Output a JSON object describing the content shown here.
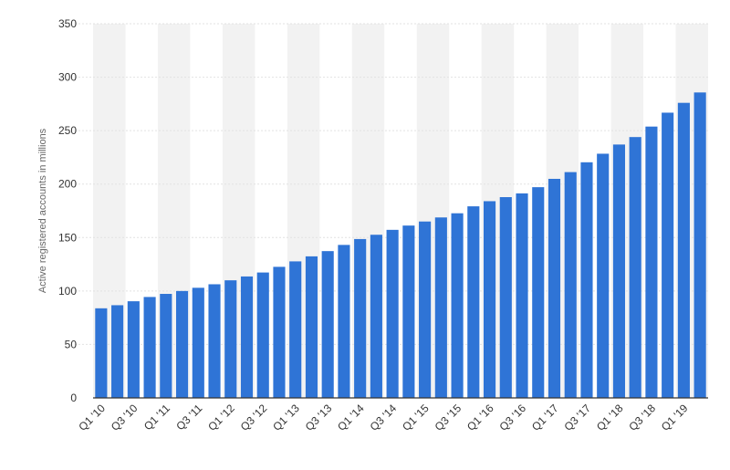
{
  "chart_data": {
    "type": "bar",
    "title": "",
    "xlabel": "",
    "ylabel": "Active registered accounts in millions",
    "ylim": [
      0,
      350
    ],
    "yticks": [
      0,
      50,
      100,
      150,
      200,
      250,
      300,
      350
    ],
    "grid": true,
    "legend": "none",
    "bar_color": "#2f74d6",
    "alt_band_color": "#f2f2f2",
    "grid_color": "#e2e2e2",
    "axis_text_color": "#333333",
    "categories": [
      "Q1 '10",
      "Q2 '10",
      "Q3 '10",
      "Q4 '10",
      "Q1 '11",
      "Q2 '11",
      "Q3 '11",
      "Q4 '11",
      "Q1 '12",
      "Q2 '12",
      "Q3 '12",
      "Q4 '12",
      "Q1 '13",
      "Q2 '13",
      "Q3 '13",
      "Q4 '13",
      "Q1 '14",
      "Q2 '14",
      "Q3 '14",
      "Q4 '14",
      "Q1 '15",
      "Q2 '15",
      "Q3 '15",
      "Q4 '15",
      "Q1 '16",
      "Q2 '16",
      "Q3 '16",
      "Q4 '16",
      "Q1 '17",
      "Q2 '17",
      "Q3 '17",
      "Q4 '17",
      "Q1 '18",
      "Q2 '18",
      "Q3 '18",
      "Q4 '18",
      "Q1 '19",
      "Q2 '19"
    ],
    "visible_tick_labels": [
      "Q1 '10",
      "Q3 '10",
      "Q1 '11",
      "Q3 '11",
      "Q1 '12",
      "Q3 '12",
      "Q1 '13",
      "Q3 '13",
      "Q1 '14",
      "Q3 '14",
      "Q1 '15",
      "Q3 '15",
      "Q1 '16",
      "Q3 '16",
      "Q1 '17",
      "Q3 '17",
      "Q1 '18",
      "Q3 '18",
      "Q1 '19"
    ],
    "values": [
      83.8,
      86.7,
      90.4,
      94.4,
      97.3,
      100.0,
      103.0,
      106.3,
      110.0,
      113.6,
      117.3,
      122.6,
      127.7,
      132.4,
      137.3,
      143.1,
      148.6,
      152.6,
      157.2,
      161.2,
      165.0,
      168.8,
      172.7,
      179.2,
      184.0,
      187.8,
      191.3,
      197.1,
      204.9,
      211.2,
      220.4,
      228.4,
      237.0,
      244.0,
      253.8,
      266.8,
      276.0,
      285.7
    ]
  }
}
